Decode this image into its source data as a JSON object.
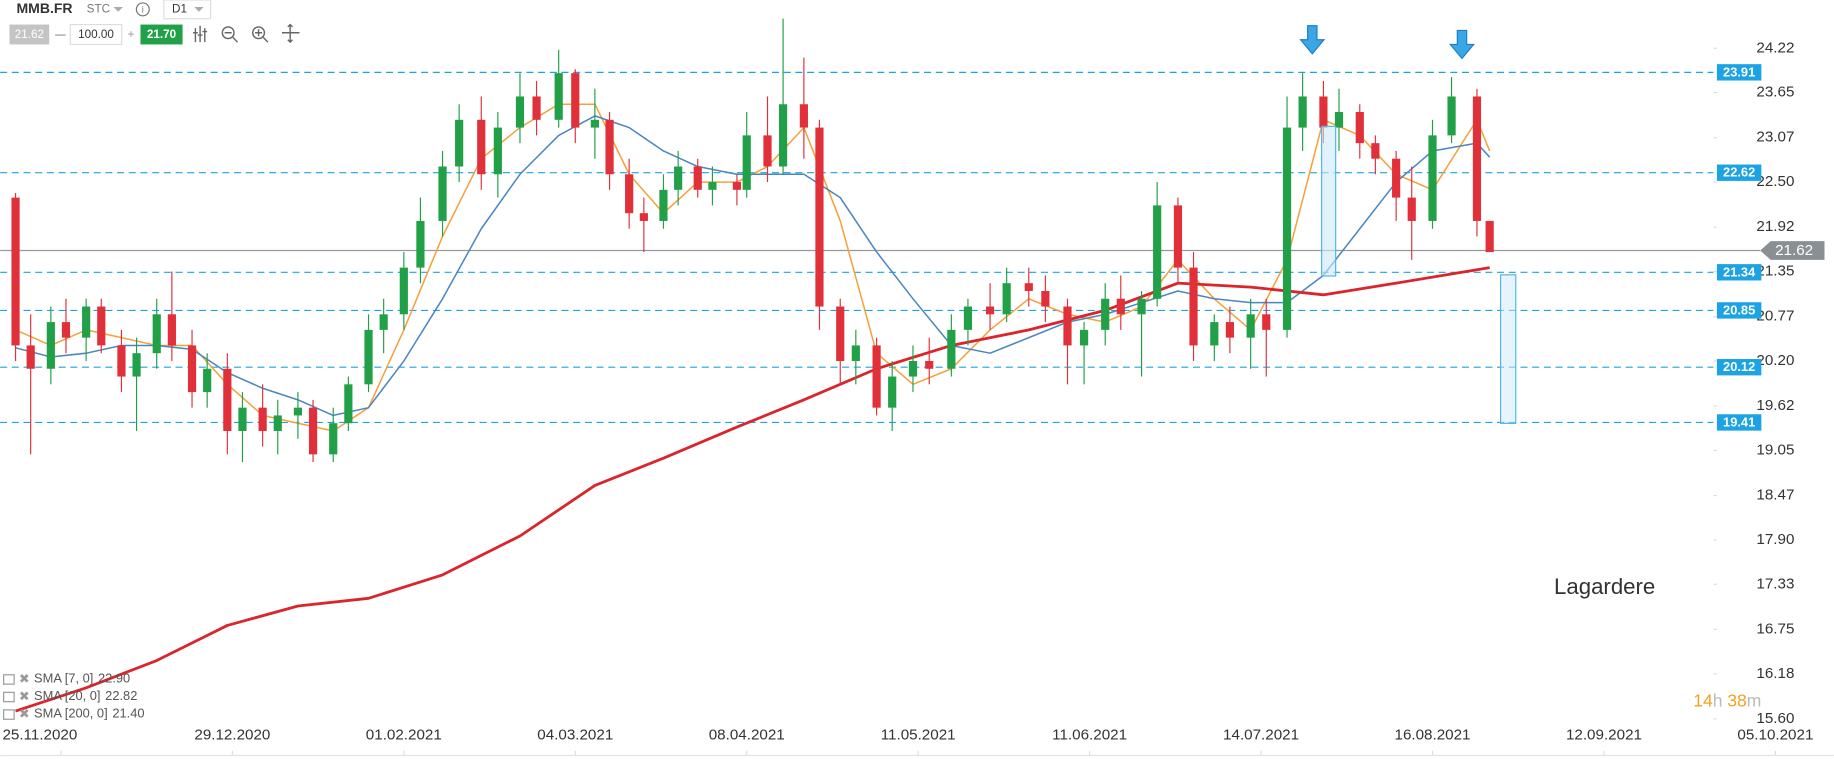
{
  "toolbar": {
    "symbol": "MMB.FR",
    "kind": "STC",
    "interval": "D1",
    "bid": "21.62",
    "volume": "100.00",
    "ask": "21.70"
  },
  "chart_data": {
    "type": "candlestick",
    "title": "Lagardere",
    "up_color": "#21a047",
    "down_color": "#e0303a",
    "level_color": "#1ca3e3",
    "x": [
      "16.11.2020",
      "19.11.2020",
      "23.11.2020",
      "26.11.2020",
      "30.11.2020",
      "03.12.2020",
      "07.12.2020",
      "10.12.2020",
      "14.12.2020",
      "17.12.2020",
      "21.12.2020",
      "24.12.2020",
      "28.12.2020",
      "31.12.2020",
      "04.01.2021",
      "07.01.2021",
      "11.01.2021",
      "14.01.2021",
      "18.01.2021",
      "21.01.2021",
      "25.01.2021",
      "28.01.2021",
      "01.02.2021",
      "04.02.2021",
      "08.02.2021",
      "11.02.2021",
      "15.02.2021",
      "18.02.2021",
      "22.02.2021",
      "25.02.2021",
      "01.03.2021",
      "04.03.2021",
      "08.03.2021",
      "11.03.2021",
      "15.03.2021",
      "18.03.2021",
      "22.03.2021",
      "25.03.2021",
      "29.03.2021",
      "01.04.2021",
      "06.04.2021",
      "08.04.2021",
      "12.04.2021",
      "15.04.2021",
      "19.04.2021",
      "22.04.2021",
      "26.04.2021",
      "29.04.2021",
      "03.05.2021",
      "06.05.2021",
      "10.05.2021",
      "13.05.2021",
      "17.05.2021",
      "20.05.2021",
      "24.05.2021",
      "27.05.2021",
      "31.05.2021",
      "03.06.2021",
      "07.06.2021",
      "10.06.2021",
      "14.06.2021",
      "17.06.2021",
      "21.06.2021",
      "24.06.2021",
      "28.06.2021",
      "01.07.2021",
      "05.07.2021",
      "08.07.2021",
      "12.07.2021",
      "15.07.2021",
      "19.07.2021",
      "22.07.2021",
      "26.07.2021",
      "29.07.2021",
      "02.08.2021",
      "05.08.2021",
      "09.08.2021",
      "12.08.2021",
      "16.08.2021",
      "19.08.2021",
      "23.08.2021",
      "25.08.2021"
    ],
    "open": [
      22.3,
      20.4,
      20.1,
      20.7,
      20.5,
      20.9,
      20.4,
      20.0,
      20.3,
      20.8,
      20.4,
      19.8,
      20.1,
      19.3,
      19.6,
      19.3,
      19.5,
      19.6,
      19.0,
      19.4,
      19.9,
      20.6,
      20.8,
      21.4,
      22.0,
      22.7,
      23.3,
      22.6,
      23.2,
      23.6,
      23.3,
      23.9,
      23.2,
      23.3,
      22.6,
      22.1,
      22.0,
      22.4,
      22.7,
      22.4,
      22.5,
      22.4,
      23.1,
      22.7,
      23.5,
      23.2,
      20.9,
      20.2,
      20.4,
      19.6,
      20.0,
      20.2,
      20.1,
      20.6,
      20.9,
      20.8,
      21.2,
      21.1,
      20.9,
      20.4,
      20.6,
      21.0,
      20.8,
      21.0,
      22.2,
      21.4,
      20.4,
      20.7,
      20.5,
      20.8,
      20.6,
      23.2,
      23.6,
      23.2,
      23.4,
      23.0,
      22.8,
      22.3,
      22.0,
      23.1,
      23.6,
      22.0
    ],
    "high": [
      22.36,
      20.8,
      20.9,
      21.0,
      21.0,
      21.0,
      20.6,
      20.5,
      21.0,
      21.35,
      20.6,
      20.3,
      20.3,
      19.8,
      19.9,
      19.7,
      19.8,
      19.7,
      19.6,
      20.0,
      20.8,
      21.0,
      21.6,
      22.3,
      22.9,
      23.5,
      23.6,
      23.4,
      23.9,
      23.8,
      24.2,
      23.95,
      23.7,
      23.4,
      22.8,
      22.3,
      22.6,
      22.9,
      22.8,
      22.7,
      22.6,
      23.4,
      23.6,
      24.6,
      24.1,
      23.3,
      21.0,
      20.6,
      20.5,
      20.2,
      20.4,
      20.5,
      20.8,
      21.0,
      21.2,
      21.4,
      21.4,
      21.3,
      21.0,
      20.7,
      21.2,
      21.3,
      21.1,
      22.5,
      22.3,
      21.6,
      20.8,
      20.9,
      21.0,
      21.0,
      23.6,
      23.9,
      23.8,
      23.7,
      23.5,
      23.1,
      22.9,
      22.7,
      23.3,
      23.85,
      23.7,
      22.0
    ],
    "low": [
      20.2,
      19.0,
      19.9,
      20.3,
      20.2,
      20.3,
      19.8,
      19.3,
      20.1,
      20.2,
      19.6,
      19.6,
      19.0,
      18.9,
      19.1,
      19.0,
      19.2,
      18.9,
      18.9,
      19.3,
      19.8,
      20.3,
      20.6,
      21.2,
      21.8,
      22.5,
      22.4,
      22.3,
      23.0,
      23.1,
      23.2,
      23.0,
      22.8,
      22.4,
      21.9,
      21.6,
      21.9,
      22.2,
      22.3,
      22.2,
      22.2,
      22.3,
      22.5,
      22.6,
      22.8,
      20.6,
      19.9,
      19.9,
      19.5,
      19.3,
      19.8,
      19.9,
      20.0,
      20.4,
      20.6,
      20.7,
      20.9,
      20.7,
      19.9,
      19.9,
      20.4,
      20.6,
      20.0,
      20.9,
      21.2,
      20.2,
      20.2,
      20.3,
      20.1,
      20.0,
      20.5,
      22.9,
      23.0,
      22.9,
      22.8,
      22.6,
      22.0,
      21.5,
      21.9,
      23.0,
      21.8,
      21.6
    ],
    "close": [
      20.4,
      20.1,
      20.7,
      20.5,
      20.9,
      20.4,
      20.0,
      20.3,
      20.8,
      20.4,
      19.8,
      20.1,
      19.3,
      19.6,
      19.3,
      19.5,
      19.6,
      19.0,
      19.4,
      19.9,
      20.6,
      20.8,
      21.4,
      22.0,
      22.7,
      23.3,
      22.6,
      23.2,
      23.6,
      23.3,
      23.9,
      23.2,
      23.3,
      22.6,
      22.1,
      22.0,
      22.4,
      22.7,
      22.4,
      22.5,
      22.4,
      23.1,
      22.7,
      23.5,
      23.2,
      20.9,
      20.2,
      20.4,
      19.6,
      20.0,
      20.2,
      20.1,
      20.6,
      20.9,
      20.8,
      21.2,
      21.1,
      20.9,
      20.4,
      20.6,
      21.0,
      20.8,
      21.0,
      22.2,
      21.4,
      20.4,
      20.7,
      20.5,
      20.8,
      20.6,
      23.2,
      23.6,
      23.2,
      23.4,
      23.0,
      22.8,
      22.3,
      22.0,
      23.1,
      23.6,
      22.0,
      21.6
    ],
    "series": [
      {
        "name": "SMA [7, 0]",
        "last_label": "22.90",
        "last": 22.9,
        "color": "#f5a03c",
        "width": 1.3,
        "x": [
          "16.11.2020",
          "23.11.2020",
          "30.11.2020",
          "07.12.2020",
          "14.12.2020",
          "21.12.2020",
          "28.12.2020",
          "04.01.2021",
          "11.01.2021",
          "18.01.2021",
          "25.01.2021",
          "01.02.2021",
          "08.02.2021",
          "15.02.2021",
          "22.02.2021",
          "01.03.2021",
          "08.03.2021",
          "15.03.2021",
          "22.03.2021",
          "29.03.2021",
          "06.04.2021",
          "12.04.2021",
          "19.04.2021",
          "26.04.2021",
          "03.05.2021",
          "10.05.2021",
          "17.05.2021",
          "24.05.2021",
          "31.05.2021",
          "07.06.2021",
          "14.06.2021",
          "21.06.2021",
          "28.06.2021",
          "05.07.2021",
          "12.07.2021",
          "19.07.2021",
          "26.07.2021",
          "02.08.2021",
          "09.08.2021",
          "16.08.2021",
          "23.08.2021",
          "25.08.2021"
        ],
        "values": [
          20.6,
          20.4,
          20.6,
          20.5,
          20.4,
          20.4,
          19.9,
          19.5,
          19.4,
          19.3,
          19.6,
          20.6,
          21.8,
          22.8,
          23.2,
          23.5,
          23.5,
          22.6,
          22.1,
          22.5,
          22.5,
          22.7,
          23.2,
          22.0,
          20.3,
          19.9,
          20.1,
          20.6,
          21.0,
          20.8,
          20.7,
          20.9,
          21.5,
          21.0,
          20.6,
          21.5,
          23.3,
          23.1,
          22.6,
          22.4,
          23.3,
          22.9
        ]
      },
      {
        "name": "SMA [20, 0]",
        "last_label": "22.82",
        "last": 22.82,
        "color": "#4a86c0",
        "width": 1.3,
        "x": [
          "16.11.2020",
          "23.11.2020",
          "30.11.2020",
          "07.12.2020",
          "14.12.2020",
          "21.12.2020",
          "28.12.2020",
          "04.01.2021",
          "11.01.2021",
          "18.01.2021",
          "25.01.2021",
          "01.02.2021",
          "08.02.2021",
          "15.02.2021",
          "22.02.2021",
          "01.03.2021",
          "08.03.2021",
          "15.03.2021",
          "22.03.2021",
          "29.03.2021",
          "06.04.2021",
          "12.04.2021",
          "19.04.2021",
          "26.04.2021",
          "03.05.2021",
          "10.05.2021",
          "17.05.2021",
          "24.05.2021",
          "31.05.2021",
          "07.06.2021",
          "14.06.2021",
          "21.06.2021",
          "28.06.2021",
          "05.07.2021",
          "12.07.2021",
          "19.07.2021",
          "26.07.2021",
          "02.08.2021",
          "09.08.2021",
          "16.08.2021",
          "23.08.2021",
          "25.08.2021"
        ],
        "values": [
          20.37,
          20.25,
          20.3,
          20.4,
          20.4,
          20.35,
          20.05,
          19.85,
          19.7,
          19.5,
          19.6,
          20.2,
          21.0,
          21.9,
          22.6,
          23.1,
          23.35,
          23.2,
          22.9,
          22.7,
          22.6,
          22.6,
          22.6,
          22.3,
          21.6,
          21.0,
          20.4,
          20.3,
          20.5,
          20.7,
          20.8,
          20.95,
          21.1,
          21.0,
          20.95,
          20.95,
          21.3,
          21.9,
          22.5,
          22.9,
          23.0,
          22.82
        ]
      },
      {
        "name": "SMA [200, 0]",
        "last_label": "21.40",
        "last": 21.4,
        "color": "#d9252b",
        "width": 2.4,
        "x": [
          "16.11.2020",
          "30.11.2020",
          "14.12.2020",
          "28.12.2020",
          "11.01.2021",
          "25.01.2021",
          "08.02.2021",
          "22.02.2021",
          "08.03.2021",
          "22.03.2021",
          "06.04.2021",
          "19.04.2021",
          "03.05.2021",
          "17.05.2021",
          "31.05.2021",
          "14.06.2021",
          "28.06.2021",
          "12.07.2021",
          "26.07.2021",
          "09.08.2021",
          "25.08.2021"
        ],
        "values": [
          15.7,
          16.0,
          16.35,
          16.8,
          17.05,
          17.15,
          17.45,
          17.95,
          18.6,
          18.95,
          19.35,
          19.7,
          20.1,
          20.4,
          20.6,
          20.85,
          21.2,
          21.15,
          21.05,
          21.2,
          21.4
        ]
      }
    ],
    "xticks": [
      "25.11.2020",
      "29.12.2020",
      "01.02.2021",
      "04.03.2021",
      "08.04.2021",
      "11.05.2021",
      "11.06.2021",
      "14.07.2021",
      "16.08.2021",
      "12.09.2021",
      "05.10.2021"
    ],
    "ylim": [
      15.52,
      24.84
    ],
    "yticks": [
      24.22,
      23.65,
      23.07,
      {
        "value": 22.5,
        "label": "22.50"
      },
      21.92,
      21.35,
      20.77,
      {
        "value": 20.2,
        "label": "20.20"
      },
      19.62,
      19.05,
      18.47,
      {
        "value": 17.9,
        "label": "17.90"
      },
      17.33,
      16.75,
      16.18,
      {
        "value": 15.6,
        "label": "15.60"
      }
    ],
    "levels": [
      23.91,
      22.62,
      21.34,
      20.85,
      20.12,
      19.41
    ],
    "last_price": 21.62,
    "timer": {
      "hours": 14,
      "hours_unit": "h",
      "minutes": 38,
      "minutes_unit": "m"
    }
  }
}
